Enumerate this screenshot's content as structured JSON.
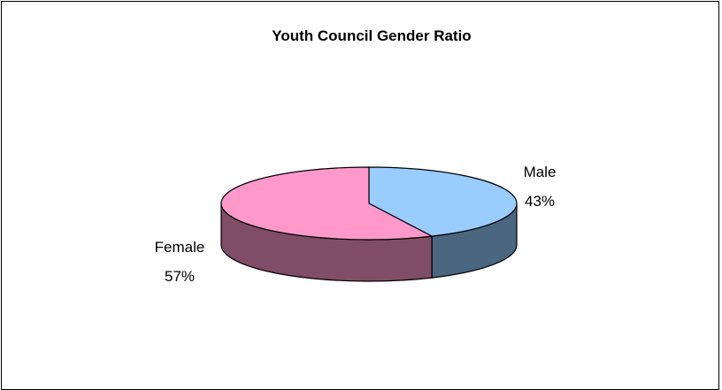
{
  "chart_data": {
    "type": "pie",
    "title": "Youth Council Gender Ratio",
    "categories": [
      "Male",
      "Female"
    ],
    "values": [
      43,
      57
    ],
    "unit": "%",
    "colors": {
      "Male": "#99CCFF",
      "Female": "#FF99CC"
    },
    "side_colors": {
      "Male": "#4A6680",
      "Female": "#804D66"
    },
    "data_labels": [
      {
        "category": "Male",
        "percent": "43%"
      },
      {
        "category": "Female",
        "percent": "57%"
      }
    ],
    "legend": "none",
    "style": "3d-pie"
  }
}
